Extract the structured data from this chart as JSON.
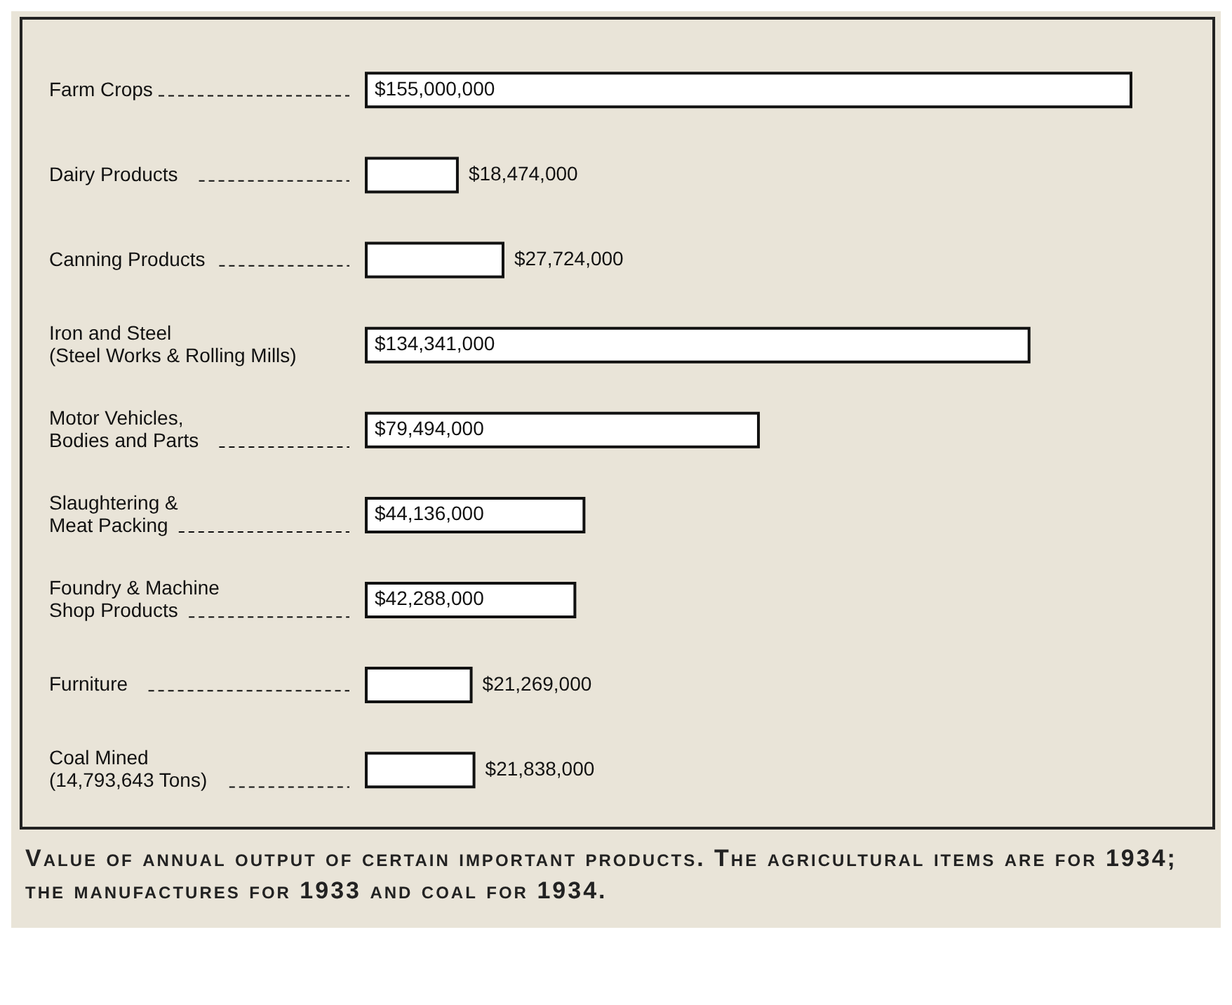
{
  "chart_data": {
    "type": "bar",
    "orientation": "horizontal",
    "title": "Value of annual output of certain important products. The agricultural items are for 1934; the manufactures for 1933 and coal for 1934.",
    "categories": [
      "Farm Crops",
      "Dairy Products",
      "Canning Products",
      "Iron and Steel\n(Steel Works & Rolling Mills)",
      "Motor Vehicles,\nBodies and Parts",
      "Slaughtering &\nMeat Packing",
      "Foundry & Machine\nShop Products",
      "Furniture",
      "Coal Mined\n(14,793,643 Tons)"
    ],
    "values": [
      155000000,
      18474000,
      27724000,
      134341000,
      79494000,
      44136000,
      42288000,
      21269000,
      21838000
    ],
    "value_labels": [
      "$155,000,000",
      "$18,474,000",
      "$27,724,000",
      "$134,341,000",
      "$79,494,000",
      "$44,136,000",
      "$42,288,000",
      "$21,269,000",
      "$21,838,000"
    ],
    "color": "#ffffff"
  }
}
